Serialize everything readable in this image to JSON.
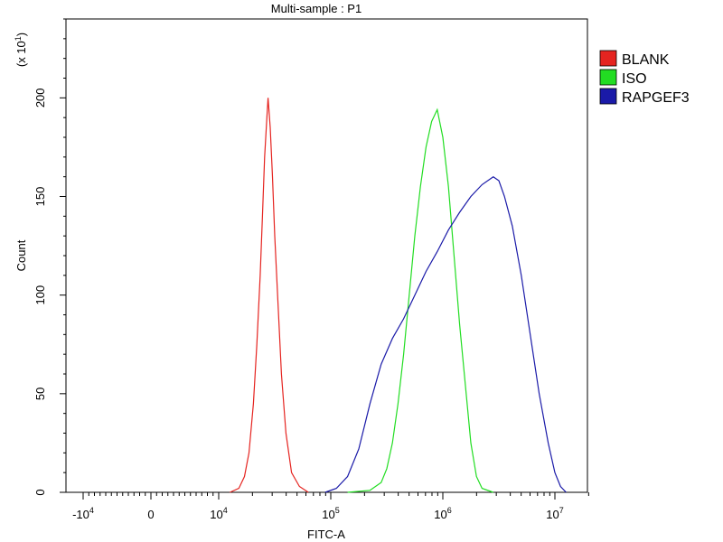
{
  "chart_data": {
    "type": "line",
    "title": "Multi-sample : P1",
    "xlabel": "FITC-A",
    "ylabel": "Count",
    "y_multiplier": {
      "base": "(x 10",
      "exp": "1",
      "close": ")"
    },
    "ylim": [
      0,
      240
    ],
    "y_ticks": [
      "0",
      "50",
      "100",
      "150",
      "200"
    ],
    "x_ticks": [
      {
        "base": "-10",
        "exp": "4"
      },
      {
        "base": "0",
        "exp": ""
      },
      {
        "base": "10",
        "exp": "4"
      },
      {
        "base": "10",
        "exp": "5"
      },
      {
        "base": "10",
        "exp": "6"
      },
      {
        "base": "10",
        "exp": "7"
      }
    ],
    "x_scale": "biexponential",
    "legend_position": "right",
    "series": [
      {
        "name": "BLANK",
        "color": "#e52420",
        "points": [
          [
            4.1,
            0
          ],
          [
            4.18,
            2
          ],
          [
            4.23,
            8
          ],
          [
            4.27,
            20
          ],
          [
            4.31,
            45
          ],
          [
            4.34,
            75
          ],
          [
            4.37,
            110
          ],
          [
            4.39,
            140
          ],
          [
            4.41,
            170
          ],
          [
            4.43,
            190
          ],
          [
            4.44,
            200
          ],
          [
            4.46,
            185
          ],
          [
            4.48,
            160
          ],
          [
            4.5,
            130
          ],
          [
            4.53,
            95
          ],
          [
            4.56,
            60
          ],
          [
            4.6,
            30
          ],
          [
            4.65,
            10
          ],
          [
            4.72,
            3
          ],
          [
            4.8,
            0
          ]
        ]
      },
      {
        "name": "ISO",
        "color": "#22dd22",
        "points": [
          [
            5.15,
            0
          ],
          [
            5.35,
            1
          ],
          [
            5.45,
            5
          ],
          [
            5.5,
            12
          ],
          [
            5.55,
            25
          ],
          [
            5.6,
            45
          ],
          [
            5.65,
            70
          ],
          [
            5.7,
            100
          ],
          [
            5.75,
            130
          ],
          [
            5.8,
            155
          ],
          [
            5.85,
            175
          ],
          [
            5.9,
            188
          ],
          [
            5.95,
            194
          ],
          [
            6.0,
            180
          ],
          [
            6.05,
            155
          ],
          [
            6.1,
            120
          ],
          [
            6.15,
            85
          ],
          [
            6.2,
            55
          ],
          [
            6.25,
            25
          ],
          [
            6.3,
            8
          ],
          [
            6.35,
            2
          ],
          [
            6.45,
            0
          ]
        ]
      },
      {
        "name": "RAPGEF3",
        "color": "#1a1aa8",
        "points": [
          [
            4.95,
            0
          ],
          [
            5.05,
            2
          ],
          [
            5.15,
            8
          ],
          [
            5.25,
            22
          ],
          [
            5.35,
            45
          ],
          [
            5.45,
            65
          ],
          [
            5.55,
            78
          ],
          [
            5.65,
            88
          ],
          [
            5.75,
            100
          ],
          [
            5.85,
            112
          ],
          [
            5.95,
            122
          ],
          [
            6.05,
            133
          ],
          [
            6.15,
            142
          ],
          [
            6.25,
            150
          ],
          [
            6.35,
            156
          ],
          [
            6.45,
            160
          ],
          [
            6.5,
            158
          ],
          [
            6.55,
            150
          ],
          [
            6.62,
            135
          ],
          [
            6.7,
            110
          ],
          [
            6.78,
            80
          ],
          [
            6.86,
            50
          ],
          [
            6.94,
            25
          ],
          [
            7.0,
            10
          ],
          [
            7.05,
            3
          ],
          [
            7.1,
            0
          ]
        ]
      }
    ]
  }
}
